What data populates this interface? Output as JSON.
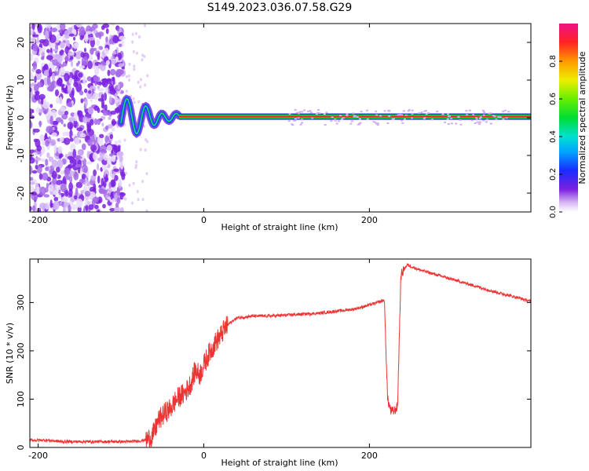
{
  "figure": {
    "title": "S149.2023.036.07.58.G29"
  },
  "chart_data": [
    {
      "type": "heatmap",
      "xlabel": "Height of straight line (km)",
      "ylabel": "Frequency (Hz)",
      "xlim": [
        -210,
        395
      ],
      "ylim": [
        -25,
        25
      ],
      "xticks": [
        -200,
        0,
        200
      ],
      "yticks": [
        -20,
        -10,
        0,
        10,
        20
      ],
      "colorbar": {
        "label": "Normalized spectral amplitude",
        "range": [
          0,
          1
        ],
        "ticks": [
          0.0,
          0.2,
          0.4,
          0.6,
          0.8
        ],
        "tick_labels": [
          "0.0",
          "0.2",
          "0.4",
          "0.6",
          "0.8"
        ],
        "colormap": "rainbow (white→purple→blue→cyan→green→yellow→orange→red→magenta)"
      },
      "features": {
        "noise_region_x": [
          -210,
          -97
        ],
        "signal_line_frequency_hz": 0.3,
        "signal_line_start_x": -30,
        "transition_region_x": [
          -100,
          -30
        ]
      }
    },
    {
      "type": "line",
      "xlabel": "Height of straight line (km)",
      "ylabel": "SNR (10 * v/v)",
      "xlim": [
        -210,
        395
      ],
      "ylim": [
        0,
        390
      ],
      "xticks": [
        -200,
        0,
        200
      ],
      "yticks": [
        0,
        100,
        200,
        300
      ],
      "series": [
        {
          "color": "#ee3333",
          "x": [
            -210,
            -190,
            -170,
            -150,
            -130,
            -110,
            -90,
            -75,
            -65,
            -60,
            -55,
            -50,
            -45,
            -40,
            -35,
            -30,
            -25,
            -20,
            -15,
            -10,
            -5,
            0,
            5,
            10,
            15,
            20,
            25,
            30,
            35,
            40,
            50,
            60,
            80,
            100,
            120,
            140,
            160,
            180,
            190,
            200,
            210,
            218,
            222,
            226,
            230,
            234,
            238,
            242,
            246,
            250,
            260,
            280,
            300,
            320,
            340,
            360,
            380,
            395
          ],
          "y": [
            15,
            15,
            12,
            12,
            12,
            12,
            12,
            14,
            18,
            30,
            55,
            65,
            75,
            80,
            95,
            105,
            110,
            120,
            135,
            160,
            150,
            170,
            190,
            205,
            220,
            230,
            245,
            255,
            262,
            268,
            270,
            272,
            272,
            274,
            276,
            278,
            282,
            286,
            290,
            295,
            300,
            305,
            100,
            75,
            75,
            85,
            355,
            370,
            378,
            375,
            368,
            358,
            348,
            338,
            328,
            318,
            310,
            302
          ]
        }
      ]
    }
  ]
}
